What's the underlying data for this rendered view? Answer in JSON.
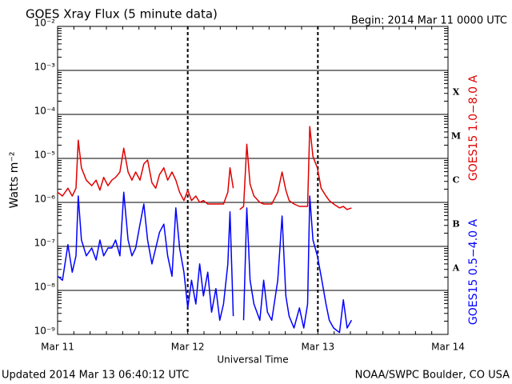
{
  "chart_data": {
    "type": "line",
    "title": "GOES Xray Flux (5 minute data)",
    "subtitle": "Begin:  2014 Mar 11 0000 UTC",
    "y_label": "Watts m⁻²",
    "x_label": "Universal Time",
    "footer_left": "Updated 2014 Mar 13 06:40:12 UTC",
    "footer_right": "NOAA/SWPC Boulder, CO USA",
    "class_labels": [
      "X",
      "M",
      "C",
      "B",
      "A"
    ],
    "log_scale_y": true,
    "grid": true,
    "xlim": [
      0,
      72
    ],
    "xticks": [
      {
        "value": 0,
        "label": "Mar 11"
      },
      {
        "value": 24,
        "label": "Mar 12"
      },
      {
        "value": 48,
        "label": "Mar 13"
      },
      {
        "value": 72,
        "label": "Mar 14"
      }
    ],
    "ylim": [
      1e-09,
      0.01
    ],
    "yticks": [
      {
        "value": 1e-09,
        "label": "10⁻⁹"
      },
      {
        "value": 1e-08,
        "label": "10⁻⁸"
      },
      {
        "value": 1e-07,
        "label": "10⁻⁷"
      },
      {
        "value": 1e-06,
        "label": "10⁻⁶"
      },
      {
        "value": 1e-05,
        "label": "10⁻⁵"
      },
      {
        "value": 0.0001,
        "label": "10⁻⁴"
      },
      {
        "value": 0.001,
        "label": "10⁻³"
      },
      {
        "value": 0.01,
        "label": "10⁻²"
      }
    ],
    "x": [
      0,
      0.9,
      1.9,
      2.7,
      3.4,
      3.8,
      4.4,
      5.3,
      6.3,
      7.1,
      7.8,
      8.5,
      9.3,
      10.0,
      10.7,
      11.5,
      12.2,
      13.0,
      13.7,
      14.4,
      15.2,
      15.9,
      16.6,
      17.4,
      18.1,
      18.8,
      19.6,
      20.3,
      21.1,
      21.8,
      22.5,
      23.3,
      24.0,
      24.7,
      25.5,
      26.2,
      26.9,
      27.7,
      28.4,
      29.2,
      29.9,
      30.6,
      31.4,
      31.8,
      32.4,
      33.0,
      33.6,
      34.3,
      34.9,
      35.5,
      36.2,
      37.3,
      38.0,
      38.7,
      39.5,
      40.6,
      41.4,
      42.1,
      42.7,
      43.6,
      44.6,
      45.4,
      46.1,
      46.5,
      47.1,
      47.9,
      48.6,
      49.5,
      50.1,
      50.9,
      52.0,
      52.7,
      53.4,
      54.2
    ],
    "series": [
      {
        "name": "GOES15 1.0−8.0 A",
        "color": "#e00000",
        "values": [
          1.7e-06,
          1.4e-06,
          2.1e-06,
          1.4e-06,
          2.1e-06,
          2.6e-05,
          6.1e-06,
          3.2e-06,
          2.4e-06,
          3.2e-06,
          1.9e-06,
          3.7e-06,
          2.4e-06,
          3.2e-06,
          3.7e-06,
          4.9e-06,
          1.7e-05,
          4.9e-06,
          3.2e-06,
          4.9e-06,
          3.2e-06,
          7.5e-06,
          9.2e-06,
          2.8e-06,
          2.1e-06,
          4.3e-06,
          6.1e-06,
          3.2e-06,
          4.9e-06,
          3.2e-06,
          1.7e-06,
          1.1e-06,
          1.9e-06,
          1.1e-06,
          1.4e-06,
          1e-06,
          1.1e-06,
          9.2e-07,
          9.2e-07,
          9.2e-07,
          9.2e-07,
          9.2e-07,
          1.7e-06,
          6.1e-06,
          2.1e-06,
          null,
          6.9e-07,
          8.1e-07,
          2.1e-05,
          2.6e-06,
          1.4e-06,
          1e-06,
          9.2e-07,
          9.2e-07,
          9.2e-07,
          1.7e-06,
          4.9e-06,
          1.9e-06,
          1.1e-06,
          9.2e-07,
          8.1e-07,
          8.1e-07,
          8.1e-07,
          5.3e-05,
          1.1e-05,
          6.1e-06,
          2.1e-06,
          1.4e-06,
          1.1e-06,
          9.2e-07,
          7.5e-07,
          8.1e-07,
          6.9e-07,
          7.5e-07
        ]
      },
      {
        "name": "GOES15 0.5−4.0 A",
        "color": "#0000ff",
        "values": [
          2.1e-08,
          1.7e-08,
          1.1e-07,
          2.6e-08,
          6.1e-08,
          1.4e-06,
          1.4e-07,
          6.1e-08,
          9.2e-08,
          4.9e-08,
          1.4e-07,
          6.1e-08,
          9.2e-08,
          9.2e-08,
          1.4e-07,
          6.1e-08,
          1.7e-06,
          1.4e-07,
          6.1e-08,
          9.2e-08,
          3.2e-07,
          9.2e-07,
          1.4e-07,
          4e-08,
          9.2e-08,
          2.1e-07,
          3.2e-07,
          6.1e-08,
          2.1e-08,
          7.5e-07,
          9.2e-08,
          2.6e-08,
          4e-09,
          1.7e-08,
          4.9e-09,
          4e-08,
          7.5e-09,
          2.6e-08,
          3.2e-09,
          1.1e-08,
          2.1e-09,
          4.9e-09,
          4e-08,
          6.1e-07,
          2.6e-09,
          null,
          null,
          2.1e-09,
          7.5e-07,
          1.7e-08,
          4.9e-09,
          2.1e-09,
          1.7e-08,
          3.2e-09,
          2.1e-09,
          1.7e-08,
          4.9e-07,
          7.5e-09,
          2.6e-09,
          1.4e-09,
          4e-09,
          1.4e-09,
          4.9e-09,
          1.4e-06,
          1.4e-07,
          6.1e-08,
          2.1e-08,
          4.9e-09,
          2.1e-09,
          1.4e-09,
          1.1e-09,
          6.1e-09,
          1.4e-09,
          2.1e-09
        ]
      }
    ]
  }
}
